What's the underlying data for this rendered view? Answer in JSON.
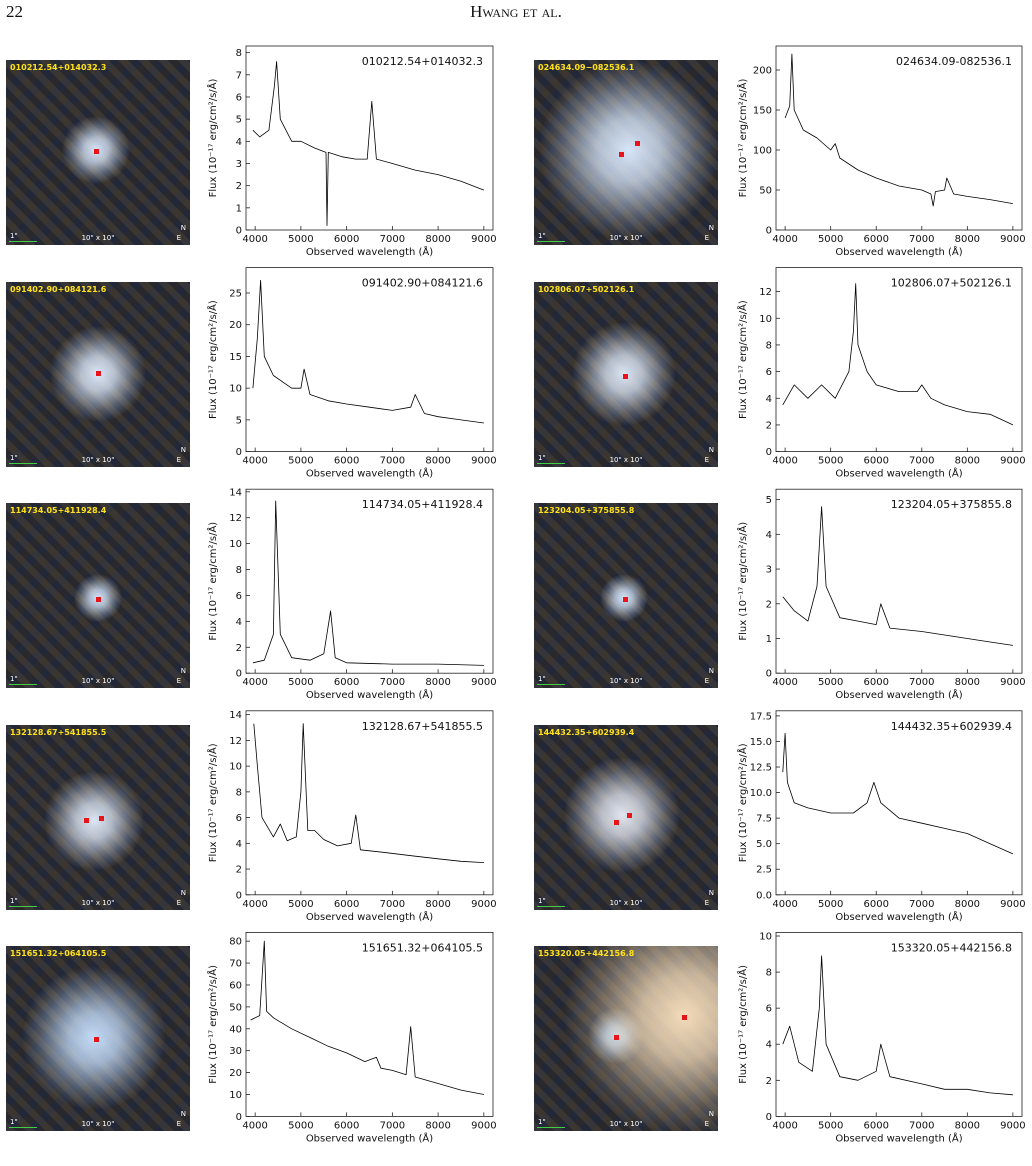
{
  "header": {
    "page_number": "22",
    "running_head": "Hwang et al."
  },
  "images": [
    {
      "label": "010212.54+014032.3",
      "size_label": "10\" x 10\"",
      "scale_label": "1\"",
      "north": "N",
      "east": "E"
    },
    {
      "label": "024634.09−082536.1",
      "size_label": "10\" x 10\"",
      "scale_label": "1\"",
      "north": "N",
      "east": "E"
    },
    {
      "label": "091402.90+084121.6",
      "size_label": "10\" x 10\"",
      "scale_label": "1\"",
      "north": "N",
      "east": "E"
    },
    {
      "label": "102806.07+502126.1",
      "size_label": "10\" x 10\"",
      "scale_label": "1\"",
      "north": "N",
      "east": "E"
    },
    {
      "label": "114734.05+411928.4",
      "size_label": "10\" x 10\"",
      "scale_label": "1\"",
      "north": "N",
      "east": "E"
    },
    {
      "label": "123204.05+375855.8",
      "size_label": "10\" x 10\"",
      "scale_label": "1\"",
      "north": "N",
      "east": "E"
    },
    {
      "label": "132128.67+541855.5",
      "size_label": "10\" x 10\"",
      "scale_label": "1\"",
      "north": "N",
      "east": "E"
    },
    {
      "label": "144432.35+602939.4",
      "size_label": "10\" x 10\"",
      "scale_label": "1\"",
      "north": "N",
      "east": "E"
    },
    {
      "label": "151651.32+064105.5",
      "size_label": "10\" x 10\"",
      "scale_label": "1\"",
      "north": "N",
      "east": "E"
    },
    {
      "label": "153320.05+442156.8",
      "size_label": "10\" x 10\"",
      "scale_label": "1\"",
      "north": "N",
      "east": "E"
    }
  ],
  "chart_data": [
    {
      "type": "line",
      "label": "010212.54+014032.3",
      "x_label": "Observed wavelength (Å)",
      "y_label": "Flux (10⁻¹⁷ erg/cm²/s/Å)",
      "color": "#000000",
      "x": [
        3950,
        4100,
        4300,
        4420,
        4470,
        4550,
        4800,
        5000,
        5300,
        5550,
        5570,
        5600,
        5900,
        6200,
        6450,
        6550,
        6650,
        7000,
        7500,
        8000,
        8500,
        9000
      ],
      "values": [
        4.5,
        4.2,
        4.5,
        6.5,
        7.6,
        5,
        4,
        4,
        3.7,
        3.5,
        0.2,
        3.5,
        3.3,
        3.2,
        3.2,
        5.8,
        3.2,
        3,
        2.7,
        2.5,
        2.2,
        1.8
      ],
      "xlim": [
        3800,
        9200
      ],
      "xticks": [
        4000,
        5000,
        6000,
        7000,
        8000,
        9000
      ],
      "ylim": [
        0,
        8.3
      ],
      "yticks": [
        0,
        1,
        2,
        3,
        4,
        5,
        6,
        7,
        8
      ]
    },
    {
      "type": "line",
      "label": "024634.09-082536.1",
      "x_label": "Observed wavelength (Å)",
      "y_label": "Flux (10⁻¹⁷ erg/cm²/s/Å)",
      "color": "#000000",
      "x": [
        4000,
        4100,
        4150,
        4200,
        4400,
        4700,
        5000,
        5100,
        5200,
        5600,
        6000,
        6500,
        7000,
        7200,
        7250,
        7300,
        7500,
        7550,
        7700,
        8000,
        8500,
        9000
      ],
      "values": [
        140,
        155,
        220,
        150,
        125,
        115,
        100,
        108,
        90,
        75,
        65,
        55,
        50,
        45,
        30,
        48,
        50,
        65,
        45,
        42,
        38,
        33
      ],
      "xlim": [
        3800,
        9200
      ],
      "xticks": [
        4000,
        5000,
        6000,
        7000,
        8000,
        9000
      ],
      "ylim": [
        0,
        230
      ],
      "yticks": [
        0,
        50,
        100,
        150,
        200
      ]
    },
    {
      "type": "line",
      "label": "091402.90+084121.6",
      "x_label": "Observed wavelength (Å)",
      "y_label": "Flux (10⁻¹⁷ erg/cm²/s/Å)",
      "color": "#000000",
      "x": [
        3950,
        4050,
        4120,
        4200,
        4400,
        4800,
        5000,
        5070,
        5200,
        5600,
        6000,
        6500,
        7000,
        7400,
        7500,
        7700,
        8000,
        8500,
        9000
      ],
      "values": [
        10,
        18,
        27,
        15,
        12,
        10,
        10,
        13,
        9,
        8,
        7.5,
        7,
        6.5,
        7,
        9,
        6,
        5.5,
        5,
        4.5
      ],
      "xlim": [
        3800,
        9200
      ],
      "xticks": [
        4000,
        5000,
        6000,
        7000,
        8000,
        9000
      ],
      "ylim": [
        0,
        29
      ],
      "yticks": [
        0,
        5,
        10,
        15,
        20,
        25
      ]
    },
    {
      "type": "line",
      "label": "102806.07+502126.1",
      "x_label": "Observed wavelength (Å)",
      "y_label": "Flux (10⁻¹⁷ erg/cm²/s/Å)",
      "color": "#000000",
      "x": [
        3950,
        4200,
        4500,
        4800,
        5100,
        5400,
        5500,
        5550,
        5600,
        5800,
        6000,
        6500,
        6900,
        7000,
        7200,
        7500,
        8000,
        8500,
        9000
      ],
      "values": [
        3.5,
        5,
        4,
        5,
        4,
        6,
        9,
        12.6,
        8,
        6,
        5,
        4.5,
        4.5,
        5,
        4,
        3.5,
        3,
        2.8,
        2
      ],
      "xlim": [
        3800,
        9200
      ],
      "xticks": [
        4000,
        5000,
        6000,
        7000,
        8000,
        9000
      ],
      "ylim": [
        0,
        13.8
      ],
      "yticks": [
        0,
        2,
        4,
        6,
        8,
        10,
        12
      ]
    },
    {
      "type": "line",
      "label": "114734.05+411928.4",
      "x_label": "Observed wavelength (Å)",
      "y_label": "Flux (10⁻¹⁷ erg/cm²/s/Å)",
      "color": "#000000",
      "x": [
        3950,
        4200,
        4400,
        4450,
        4550,
        4800,
        5200,
        5500,
        5650,
        5750,
        6000,
        7000,
        8000,
        9000
      ],
      "values": [
        0.8,
        1,
        3,
        13.3,
        3,
        1.2,
        1,
        1.5,
        4.8,
        1.2,
        0.8,
        0.7,
        0.7,
        0.6
      ],
      "xlim": [
        3800,
        9200
      ],
      "xticks": [
        4000,
        5000,
        6000,
        7000,
        8000,
        9000
      ],
      "ylim": [
        0,
        14.2
      ],
      "yticks": [
        0,
        2,
        4,
        6,
        8,
        10,
        12,
        14
      ]
    },
    {
      "type": "line",
      "label": "123204.05+375855.8",
      "x_label": "Observed wavelength (Å)",
      "y_label": "Flux (10⁻¹⁷ erg/cm²/s/Å)",
      "color": "#000000",
      "x": [
        3950,
        4200,
        4500,
        4700,
        4800,
        4900,
        5200,
        5600,
        6000,
        6100,
        6300,
        7000,
        7500,
        8000,
        8500,
        9000
      ],
      "values": [
        2.2,
        1.8,
        1.5,
        2.5,
        4.8,
        2.5,
        1.6,
        1.5,
        1.4,
        2,
        1.3,
        1.2,
        1.1,
        1,
        0.9,
        0.8
      ],
      "xlim": [
        3800,
        9200
      ],
      "xticks": [
        4000,
        5000,
        6000,
        7000,
        8000,
        9000
      ],
      "ylim": [
        0,
        5.3
      ],
      "yticks": [
        0,
        1,
        2,
        3,
        4,
        5
      ]
    },
    {
      "type": "line",
      "label": "132128.67+541855.5",
      "x_label": "Observed wavelength (Å)",
      "y_label": "Flux (10⁻¹⁷ erg/cm²/s/Å)",
      "color": "#000000",
      "x": [
        3970,
        4050,
        4150,
        4400,
        4550,
        4700,
        4900,
        5000,
        5050,
        5150,
        5300,
        5500,
        5800,
        6100,
        6200,
        6300,
        6800,
        7500,
        8000,
        8500,
        9000
      ],
      "values": [
        13.3,
        10,
        6,
        4.5,
        5.5,
        4.2,
        4.5,
        8,
        13.3,
        5,
        5,
        4.3,
        3.8,
        4,
        6.2,
        3.5,
        3.3,
        3,
        2.8,
        2.6,
        2.5
      ],
      "xlim": [
        3800,
        9200
      ],
      "xticks": [
        4000,
        5000,
        6000,
        7000,
        8000,
        9000
      ],
      "ylim": [
        0,
        14.3
      ],
      "yticks": [
        0,
        2,
        4,
        6,
        8,
        10,
        12,
        14
      ]
    },
    {
      "type": "line",
      "label": "144432.35+602939.4",
      "x_label": "Observed wavelength (Å)",
      "y_label": "Flux (10⁻¹⁷ erg/cm²/s/Å)",
      "color": "#000000",
      "x": [
        3950,
        4000,
        4050,
        4200,
        4500,
        5000,
        5500,
        5800,
        5950,
        6100,
        6500,
        7000,
        7500,
        8000,
        8500,
        9000
      ],
      "values": [
        12,
        15.8,
        11,
        9,
        8.5,
        8,
        8,
        9,
        11,
        9,
        7.5,
        7,
        6.5,
        6,
        5,
        4
      ],
      "xlim": [
        3800,
        9200
      ],
      "xticks": [
        4000,
        5000,
        6000,
        7000,
        8000,
        9000
      ],
      "ylim": [
        0,
        18
      ],
      "yticks": [
        {
          "value": 0,
          "label": "0.0"
        },
        {
          "value": 2.5,
          "label": "2.5"
        },
        {
          "value": 5,
          "label": "5.0"
        },
        {
          "value": 7.5,
          "label": "7.5"
        },
        {
          "value": 10,
          "label": "10.0"
        },
        {
          "value": 12.5,
          "label": "12.5"
        },
        {
          "value": 15,
          "label": "15.0"
        },
        {
          "value": 17.5,
          "label": "17.5"
        }
      ]
    },
    {
      "type": "line",
      "label": "151651.32+064105.5",
      "x_label": "Observed wavelength (Å)",
      "y_label": "Flux (10⁻¹⁷ erg/cm²/s/Å)",
      "color": "#000000",
      "x": [
        3900,
        4100,
        4200,
        4250,
        4400,
        4800,
        5200,
        5600,
        6000,
        6400,
        6650,
        6750,
        7000,
        7300,
        7400,
        7500,
        8000,
        8500,
        9000
      ],
      "values": [
        44,
        46,
        80,
        48,
        45,
        40,
        36,
        32,
        29,
        25,
        27,
        22,
        21,
        19,
        41,
        18,
        15,
        12,
        10
      ],
      "xlim": [
        3800,
        9200
      ],
      "xticks": [
        4000,
        5000,
        6000,
        7000,
        8000,
        9000
      ],
      "ylim": [
        0,
        84
      ],
      "yticks": [
        0,
        10,
        20,
        30,
        40,
        50,
        60,
        70,
        80
      ]
    },
    {
      "type": "line",
      "label": "153320.05+442156.8",
      "x_label": "Observed wavelength (Å)",
      "y_label": "Flux (10⁻¹⁷ erg/cm²/s/Å)",
      "color": "#000000",
      "x": [
        3950,
        4100,
        4300,
        4600,
        4750,
        4800,
        4900,
        5200,
        5600,
        6000,
        6100,
        6300,
        7000,
        7500,
        8000,
        8500,
        9000
      ],
      "values": [
        4,
        5,
        3,
        2.5,
        6,
        8.9,
        4,
        2.2,
        2,
        2.5,
        4,
        2.2,
        1.8,
        1.5,
        1.5,
        1.3,
        1.2
      ],
      "xlim": [
        3800,
        9200
      ],
      "xticks": [
        4000,
        5000,
        6000,
        7000,
        8000,
        9000
      ],
      "ylim": [
        0,
        10.2
      ],
      "yticks": [
        0,
        2,
        4,
        6,
        8,
        10
      ]
    }
  ]
}
